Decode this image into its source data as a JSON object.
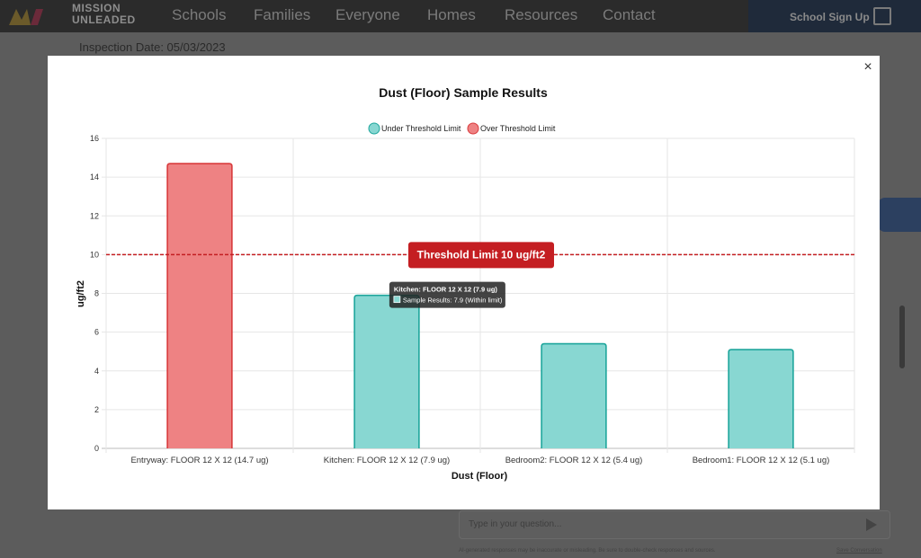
{
  "site": {
    "brand_line1": "MISSION",
    "brand_line2": "UNLEADED",
    "nav": [
      "Schools",
      "Families",
      "Everyone",
      "Homes",
      "Resources",
      "Contact"
    ],
    "signup_label": "School Sign Up",
    "inspection_label": "Inspection Date: 05/03/2023",
    "chat_placeholder": "Type in your question...",
    "disclaimer": "AI-generated responses may be inaccurate or misleading. Be sure to double-check responses and sources.",
    "disclaimer_link": "Save Conversation"
  },
  "modal": {
    "close_label": "×"
  },
  "colors": {
    "under_fill": "#88d7d2",
    "under_stroke": "#1ea69c",
    "over_fill": "#ee8283",
    "over_stroke": "#d93b3d",
    "threshold": "#c41e22"
  },
  "chart_data": {
    "type": "bar",
    "title": "Dust (Floor) Sample Results",
    "xlabel": "Dust (Floor)",
    "ylabel": "ug/ft2",
    "ylim": [
      0,
      16
    ],
    "yticks": [
      0,
      2,
      4,
      6,
      8,
      10,
      12,
      14,
      16
    ],
    "grid": true,
    "legend_position": "top-center",
    "legend": [
      "Under Threshold Limit",
      "Over Threshold Limit"
    ],
    "categories": [
      "Entryway: FLOOR 12 X 12  (14.7 ug)",
      "Kitchen: FLOOR 12 X 12  (7.9 ug)",
      "Bedroom2: FLOOR 12 X 12 (5.4 ug)",
      "Bedroom1: FLOOR 12 X 12 (5.1 ug)"
    ],
    "values": [
      14.7,
      7.9,
      5.4,
      5.1
    ],
    "status": [
      "over",
      "under",
      "under",
      "under"
    ],
    "threshold": {
      "value": 10,
      "label": "Threshold Limit 10 ug/ft2"
    },
    "tooltip": {
      "category_index": 1,
      "title": "Kitchen: FLOOR 12 X 12  (7.9 ug)",
      "body": "Sample Results: 7.9 (Within limit)"
    }
  }
}
